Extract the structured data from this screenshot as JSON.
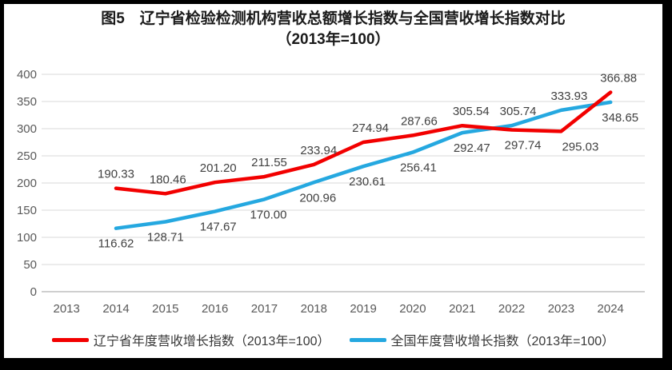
{
  "window": {
    "background": "#ffffff",
    "frame_color": "#000000"
  },
  "chart_data": {
    "type": "line",
    "title": "图5　辽宁省检验检测机构营收总额增长指数与全国营收增长指数对比",
    "subtitle": "（2013年=100）",
    "categories": [
      "2013",
      "2014",
      "2015",
      "2016",
      "2017",
      "2018",
      "2019",
      "2020",
      "2021",
      "2022",
      "2023",
      "2024"
    ],
    "ylim": [
      0,
      400
    ],
    "ytick_step": 50,
    "yticks": [
      "0",
      "50",
      "100",
      "150",
      "200",
      "250",
      "300",
      "350",
      "400"
    ],
    "grid": true,
    "legend_position": "bottom",
    "value_format": "0.00",
    "series": [
      {
        "name": "辽宁省年度营收增长指数（2013年=100）",
        "color": "#f20000",
        "values": [
          null,
          190.33,
          180.46,
          201.2,
          211.55,
          233.94,
          274.94,
          287.66,
          305.54,
          297.74,
          295.03,
          366.88
        ],
        "label_side": [
          null,
          "above",
          "above",
          "above",
          "above",
          "above",
          "above",
          "above",
          "above",
          "below",
          "below",
          "above"
        ],
        "label_dx": [
          null,
          0,
          3,
          4,
          6,
          6,
          9,
          8,
          11,
          14,
          24,
          10
        ]
      },
      {
        "name": "全国年度营收增长指数（2013年=100）",
        "color": "#25a8e0",
        "values": [
          null,
          116.62,
          128.71,
          147.67,
          170.0,
          200.96,
          230.61,
          256.41,
          292.47,
          305.74,
          333.93,
          348.65
        ],
        "label_side": [
          null,
          "below",
          "below",
          "below",
          "below",
          "below",
          "below",
          "below",
          "below",
          "above",
          "above",
          "below"
        ],
        "label_dx": [
          null,
          0,
          0,
          4,
          5,
          5,
          5,
          7,
          12,
          8,
          10,
          12
        ]
      }
    ],
    "colors": {
      "gridline": "#d9d9d9",
      "axis_line": "#bfbfbf",
      "tick_text": "#595959",
      "data_label_text": "#404040"
    }
  }
}
